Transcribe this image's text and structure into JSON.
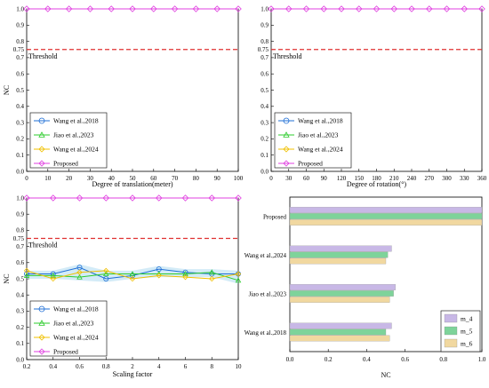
{
  "colors": {
    "wang2018": "#1f6fd6",
    "jiao2023": "#2ecc2e",
    "wang2024": "#f0c000",
    "proposed": "#e040e0",
    "threshold": "#e03030",
    "m4": "#c8b8e6",
    "m5": "#7ed39a",
    "m6": "#f1d8a0",
    "band_blue": "#a8d8f0"
  },
  "chart_data": [
    {
      "type": "line",
      "ylabel": "NC",
      "xlabel": "Degree of translation(meter)",
      "x": [
        0,
        10,
        20,
        30,
        40,
        50,
        60,
        70,
        80,
        90,
        100
      ],
      "xticks": [
        "0",
        "10",
        "20",
        "30",
        "40",
        "50",
        "60",
        "70",
        "80",
        "90",
        "100"
      ],
      "ylim": [
        0.0,
        1.0
      ],
      "yticks": [
        "0.0",
        "0.1",
        "0.2",
        "0.3",
        "0.4",
        "0.5",
        "0.6",
        "0.7",
        "0.75",
        "0.8",
        "0.9",
        "1.0"
      ],
      "threshold": 0.75,
      "threshold_label": "Threshold",
      "series": [
        {
          "name": "Proposed",
          "key": "proposed",
          "values": [
            1,
            1,
            1,
            1,
            1,
            1,
            1,
            1,
            1,
            1,
            1
          ]
        }
      ],
      "legend": {
        "placement": "bottom-left",
        "entries": [
          {
            "name": "Wang et al.,2018",
            "key": "wang2018",
            "marker": "circle"
          },
          {
            "name": "Jiao et al.,2023",
            "key": "jiao2023",
            "marker": "triangle"
          },
          {
            "name": "Wang et al.,2024",
            "key": "wang2024",
            "marker": "diamond"
          },
          {
            "name": "Proposed",
            "key": "proposed",
            "marker": "diamond"
          }
        ]
      }
    },
    {
      "type": "line",
      "ylabel": "",
      "xlabel": "Degree of rotation(°)",
      "x": [
        0,
        30,
        60,
        90,
        120,
        150,
        180,
        210,
        240,
        270,
        300,
        330,
        360
      ],
      "xticks": [
        "0",
        "30",
        "60",
        "90",
        "120",
        "150",
        "180",
        "210",
        "240",
        "270",
        "300",
        "330",
        "360"
      ],
      "ylim": [
        0.0,
        1.0
      ],
      "yticks": [
        "0.0",
        "0.1",
        "0.2",
        "0.3",
        "0.4",
        "0.5",
        "0.6",
        "0.7",
        "0.75",
        "0.8",
        "0.9",
        "1.0"
      ],
      "threshold": 0.75,
      "threshold_label": "Threshold",
      "series": [
        {
          "name": "Proposed",
          "key": "proposed",
          "values": [
            1,
            1,
            1,
            1,
            1,
            1,
            1,
            1,
            1,
            1,
            1,
            1,
            1
          ]
        }
      ],
      "legend": {
        "placement": "bottom-left",
        "entries": [
          {
            "name": "Wang et al.,2018",
            "key": "wang2018",
            "marker": "circle"
          },
          {
            "name": "Jiao et al.,2023",
            "key": "jiao2023",
            "marker": "triangle"
          },
          {
            "name": "Wang et al.,2024",
            "key": "wang2024",
            "marker": "diamond"
          },
          {
            "name": "Proposed",
            "key": "proposed",
            "marker": "diamond"
          }
        ]
      }
    },
    {
      "type": "line",
      "ylabel": "NC",
      "xlabel": "Scaling factor",
      "categories": [
        "0.2",
        "0.4",
        "0.6",
        "0.8",
        "2",
        "4",
        "6",
        "8",
        "10"
      ],
      "ylim": [
        0.0,
        1.0
      ],
      "yticks": [
        "0.0",
        "0.1",
        "0.2",
        "0.3",
        "0.4",
        "0.5",
        "0.6",
        "0.7",
        "0.75",
        "0.8",
        "0.9",
        "1.0"
      ],
      "threshold": 0.75,
      "threshold_label": "Threshold",
      "series": [
        {
          "name": "Wang et al.,2018",
          "key": "wang2018",
          "values": [
            0.53,
            0.53,
            0.57,
            0.5,
            0.52,
            0.56,
            0.54,
            0.53,
            0.53
          ]
        },
        {
          "name": "Jiao et al.,2023",
          "key": "jiao2023",
          "values": [
            0.52,
            0.52,
            0.51,
            0.53,
            0.53,
            0.53,
            0.53,
            0.54,
            0.49
          ]
        },
        {
          "name": "Wang et al.,2024",
          "key": "wang2024",
          "values": [
            0.55,
            0.5,
            0.54,
            0.55,
            0.5,
            0.52,
            0.51,
            0.5,
            0.53
          ]
        },
        {
          "name": "Proposed",
          "key": "proposed",
          "values": [
            1,
            1,
            1,
            1,
            1,
            1,
            1,
            1,
            1
          ]
        }
      ],
      "legend": {
        "placement": "bottom-left",
        "entries": [
          {
            "name": "Wang et al.,2018",
            "key": "wang2018",
            "marker": "circle"
          },
          {
            "name": "Jiao et al.,2023",
            "key": "jiao2023",
            "marker": "triangle"
          },
          {
            "name": "Wang et al.,2024",
            "key": "wang2024",
            "marker": "diamond"
          },
          {
            "name": "Proposed",
            "key": "proposed",
            "marker": "diamond"
          }
        ]
      }
    },
    {
      "type": "bar",
      "orientation": "horizontal",
      "xlabel": "NC",
      "xlim": [
        0.0,
        1.0
      ],
      "xticks": [
        "0.0",
        "0.2",
        "0.4",
        "0.6",
        "0.8",
        "1.0"
      ],
      "categories": [
        "Wang et al.,2018",
        "Jiao et al.,2023",
        "Wang et al.,2024",
        "Proposed"
      ],
      "series": [
        {
          "name": "m_4",
          "key": "m4",
          "values": [
            0.53,
            0.55,
            0.53,
            1.0
          ]
        },
        {
          "name": "m_5",
          "key": "m5",
          "values": [
            0.5,
            0.54,
            0.51,
            1.0
          ]
        },
        {
          "name": "m_6",
          "key": "m6",
          "values": [
            0.52,
            0.52,
            0.5,
            1.0
          ]
        }
      ],
      "legend": {
        "placement": "bottom-right"
      }
    }
  ]
}
